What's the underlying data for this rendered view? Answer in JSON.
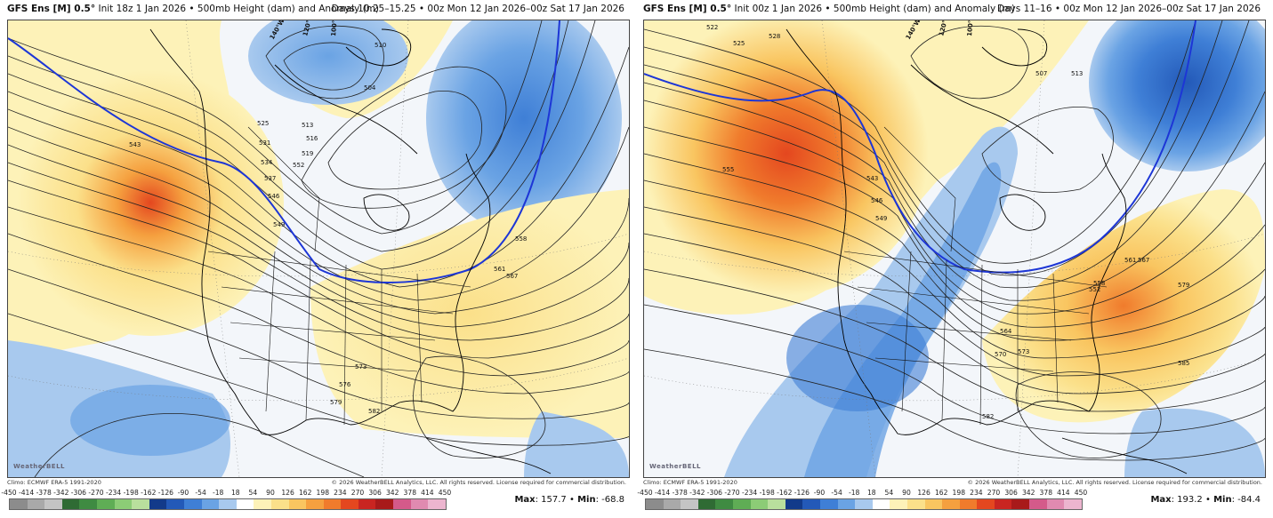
{
  "panels": [
    {
      "title_brand": "GFS Ens [M] 0.5°",
      "title_rest": "Init 18z 1 Jan 2026 • 500mb Height (dam) and Anomaly (m)",
      "valid": "Days 10.25–15.25 • 00z Mon 12 Jan 2026–00z Sat 17 Jan 2026",
      "climo": "Climo: ECMWF ERA-5 1991-2020",
      "copyright": "© 2026 WeatherBELL Analytics, LLC. All rights reserved. License required for commercial distribution.",
      "logo": "WeatherBELL",
      "max_label": "Max",
      "max_value": "157.7",
      "min_label": "Min",
      "min_value": "-68.8",
      "contour_labels": [
        "543",
        "519",
        "525",
        "531",
        "534",
        "537",
        "546",
        "549",
        "552",
        "558",
        "561",
        "567",
        "573",
        "576",
        "579",
        "582",
        "510",
        "504",
        "513",
        "516"
      ],
      "longitude_labels": [
        "140°W",
        "120°W",
        "100°W"
      ]
    },
    {
      "title_brand": "GFS Ens [M] 0.5°",
      "title_rest": "Init 00z 1 Jan 2026 • 500mb Height (dam) and Anomaly (m)",
      "valid": "Days 11–16 • 00z Mon 12 Jan 2026–00z Sat 17 Jan 2026",
      "climo": "Climo: ECMWF ERA-5 1991-2020",
      "copyright": "© 2026 WeatherBELL Analytics, LLC. All rights reserved. License required for commercial distribution.",
      "logo": "WeatherBELL",
      "max_label": "Max",
      "max_value": "193.2",
      "min_label": "Min",
      "min_value": "-84.4",
      "contour_labels": [
        "522",
        "525",
        "528",
        "555",
        "543",
        "546",
        "549",
        "552",
        "558",
        "561",
        "564",
        "567",
        "570",
        "573",
        "579",
        "582",
        "585",
        "507",
        "513"
      ],
      "longitude_labels": [
        "140°W",
        "120°W",
        "100°W"
      ]
    }
  ],
  "colorbar": {
    "ticks": [
      "-450",
      "-414",
      "-378",
      "-342",
      "-306",
      "-270",
      "-234",
      "-198",
      "-162",
      "-126",
      "-90",
      "-54",
      "-18",
      "18",
      "54",
      "90",
      "126",
      "162",
      "198",
      "234",
      "270",
      "306",
      "342",
      "378",
      "414",
      "450"
    ],
    "colors": [
      "#8c8c8c",
      "#a9a9a9",
      "#c4c4c4",
      "#2f6b34",
      "#3f8b42",
      "#5fad55",
      "#8ccc76",
      "#b9df9d",
      "#123a8a",
      "#2359b8",
      "#3f7fd6",
      "#6aa3e4",
      "#a8c9ee",
      "#ffffff",
      "#fdf2b8",
      "#fbe08a",
      "#f9c560",
      "#f5a03f",
      "#f07b2c",
      "#e4471f",
      "#c92521",
      "#a81a1a",
      "#d45a8a",
      "#e08ab0",
      "#ecb5cf"
    ]
  }
}
